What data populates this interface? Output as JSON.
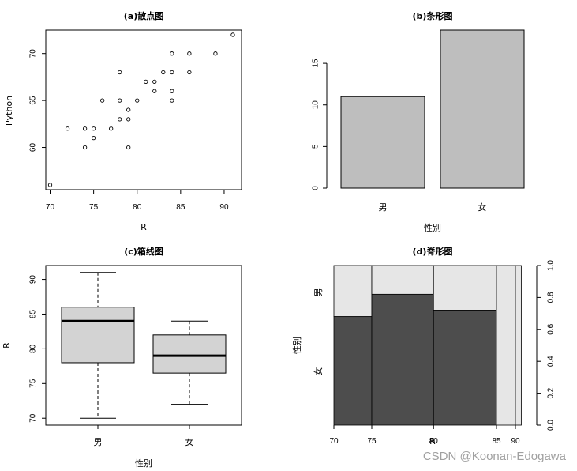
{
  "chart_data": [
    {
      "type": "scatter",
      "title": "(a)散点图",
      "xlabel": "R",
      "ylabel": "Python",
      "xlim": [
        69.5,
        92
      ],
      "ylim": [
        55.5,
        72.5
      ],
      "x_ticks": [
        70,
        75,
        80,
        85,
        90
      ],
      "y_ticks": [
        60,
        65,
        70
      ],
      "points": [
        [
          70,
          56
        ],
        [
          72,
          62
        ],
        [
          74,
          60
        ],
        [
          74,
          62
        ],
        [
          75,
          61
        ],
        [
          75,
          62
        ],
        [
          76,
          65
        ],
        [
          77,
          62
        ],
        [
          78,
          63
        ],
        [
          78,
          65
        ],
        [
          78,
          68
        ],
        [
          79,
          60
        ],
        [
          79,
          63
        ],
        [
          79,
          64
        ],
        [
          80,
          65
        ],
        [
          81,
          67
        ],
        [
          82,
          66
        ],
        [
          82,
          67
        ],
        [
          83,
          68
        ],
        [
          84,
          65
        ],
        [
          84,
          66
        ],
        [
          84,
          68
        ],
        [
          84,
          70
        ],
        [
          86,
          68
        ],
        [
          86,
          70
        ],
        [
          89,
          70
        ],
        [
          91,
          72
        ]
      ]
    },
    {
      "type": "bar",
      "title": "(b)条形图",
      "xlabel": "性别",
      "ylabel": "",
      "categories": [
        "男",
        "女"
      ],
      "values": [
        11,
        19
      ],
      "ylim": [
        0,
        19
      ],
      "y_ticks": [
        0,
        5,
        10,
        15
      ],
      "bar_color": "#bebebe"
    },
    {
      "type": "boxplot",
      "title": "(c)箱线图",
      "xlabel": "性别",
      "ylabel": "R",
      "categories": [
        "男",
        "女"
      ],
      "boxes": [
        {
          "min": 70,
          "q1": 78,
          "median": 84,
          "q3": 86,
          "max": 91
        },
        {
          "min": 72,
          "q1": 76.5,
          "median": 79,
          "q3": 82,
          "max": 84
        }
      ],
      "ylim": [
        69,
        92
      ],
      "y_ticks": [
        70,
        75,
        80,
        85,
        90
      ],
      "box_color": "#d3d3d3"
    },
    {
      "type": "spineplot",
      "title": "(d)脊形图",
      "xlabel": "R",
      "ylabel": "性别",
      "categories": [
        "男",
        "女"
      ],
      "breaks": [
        70,
        75,
        80,
        85,
        90
      ],
      "bin_widths": [
        0.192,
        0.313,
        0.319,
        0.096,
        0.03
      ],
      "female_fraction": [
        0.68,
        0.82,
        0.72,
        0,
        0
      ],
      "x_tick_labels": [
        "70",
        "75",
        "80",
        "85",
        "90"
      ],
      "right_axis_ticks": [
        "0.0",
        "0.2",
        "0.4",
        "0.6",
        "0.8",
        "1.0"
      ],
      "colors": {
        "男": "#e6e6e6",
        "女": "#4d4d4d"
      }
    }
  ],
  "watermark": "CSDN @Koonan-Edogawa"
}
